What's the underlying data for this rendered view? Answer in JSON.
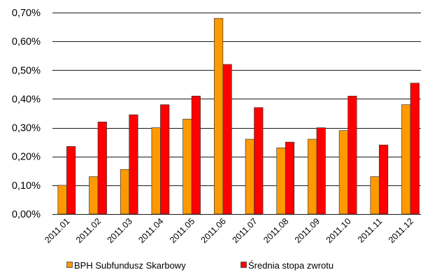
{
  "chart_data": {
    "type": "bar",
    "categories": [
      "2011.01",
      "2011.02",
      "2011.03",
      "2011.04",
      "2011.05",
      "2011.06",
      "2011.07",
      "2011.08",
      "2011.09",
      "2011.10",
      "2011.11",
      "2011.12"
    ],
    "series": [
      {
        "name": "BPH Subfundusz Skarbowy",
        "color": "#FF9900",
        "values": [
          0.1,
          0.13,
          0.155,
          0.3,
          0.33,
          0.68,
          0.26,
          0.23,
          0.26,
          0.29,
          0.13,
          0.38
        ]
      },
      {
        "name": "Średnia stopa zwrotu",
        "color": "#FF0000",
        "values": [
          0.235,
          0.32,
          0.345,
          0.38,
          0.41,
          0.52,
          0.37,
          0.25,
          0.3,
          0.41,
          0.24,
          0.455
        ]
      }
    ],
    "ylim": [
      0,
      0.7
    ],
    "y_ticks": [
      0,
      0.1,
      0.2,
      0.3,
      0.4,
      0.5,
      0.6,
      0.7
    ],
    "y_tick_labels": [
      "0,00%",
      "0,10%",
      "0,20%",
      "0,30%",
      "0,40%",
      "0,50%",
      "0,60%",
      "0,70%"
    ],
    "y_unit": "%",
    "grid": true,
    "x_tick_rotation": "45 degrees",
    "legend_position": "bottom"
  }
}
